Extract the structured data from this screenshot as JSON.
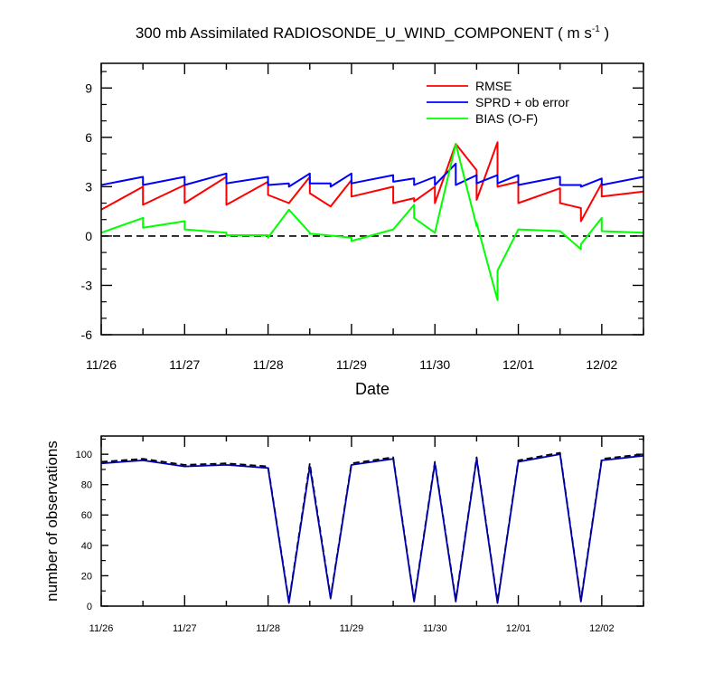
{
  "chart_data": [
    {
      "type": "line",
      "title": "300 mb Assimilated RADIOSONDE_U_WIND_COMPONENT ( m s",
      "title_superscript": "-1",
      "title_tail": " )",
      "xlabel": "Date",
      "ylabel": "",
      "x_tick_labels": [
        "11/26",
        "11/27",
        "11/28",
        "11/29",
        "11/30",
        "12/01",
        "12/02"
      ],
      "x_tick_days": [
        0,
        1,
        2,
        3,
        4,
        5,
        6
      ],
      "xlim": [
        0,
        6.5
      ],
      "ylim": [
        -6,
        10.5
      ],
      "y_ticks": [
        -6,
        -3,
        0,
        3,
        6,
        9
      ],
      "zero_line": "dashed",
      "legend_position": "top-right",
      "series": [
        {
          "name": "RMSE",
          "color": "#ff0000",
          "x": [
            0,
            0.5,
            0.5,
            1,
            1,
            1.5,
            1.5,
            2,
            2,
            2.25,
            2.5,
            2.5,
            2.75,
            3,
            3,
            3.5,
            3.5,
            3.75,
            3.75,
            4,
            4,
            4.25,
            4.5,
            4.5,
            4.75,
            4.75,
            5,
            5,
            5.5,
            5.5,
            5.75,
            5.75,
            6,
            6,
            6.5
          ],
          "y": [
            1.6,
            3.0,
            1.9,
            3.1,
            2.0,
            3.6,
            1.9,
            3.3,
            2.5,
            2.0,
            3.6,
            2.6,
            1.8,
            3.4,
            2.4,
            3.0,
            2.0,
            2.3,
            2.1,
            3.0,
            2.0,
            5.6,
            4.0,
            2.2,
            5.7,
            3.0,
            3.3,
            2.0,
            2.9,
            2.0,
            1.7,
            0.9,
            3.2,
            2.4,
            2.7
          ]
        },
        {
          "name": "SPRD + ob error",
          "color": "#0000ff",
          "x": [
            0,
            0.5,
            0.5,
            1,
            1,
            1.5,
            1.5,
            2,
            2,
            2.25,
            2.25,
            2.5,
            2.5,
            2.75,
            2.75,
            3,
            3,
            3.5,
            3.5,
            3.75,
            3.75,
            4,
            4,
            4.25,
            4.25,
            4.5,
            4.5,
            4.75,
            4.75,
            5,
            5,
            5.5,
            5.5,
            5.75,
            5.75,
            6,
            6,
            6.5
          ],
          "y": [
            3.1,
            3.6,
            3.1,
            3.6,
            3.1,
            3.8,
            3.2,
            3.6,
            3.1,
            3.2,
            3.0,
            3.8,
            3.2,
            3.2,
            3.0,
            3.8,
            3.2,
            3.7,
            3.3,
            3.5,
            3.1,
            3.6,
            3.1,
            4.4,
            3.1,
            3.7,
            3.2,
            3.7,
            3.2,
            3.7,
            3.1,
            3.6,
            3.1,
            3.1,
            3.0,
            3.5,
            3.1,
            3.6
          ]
        },
        {
          "name": "BIAS (O-F)",
          "color": "#00ff00",
          "x": [
            0,
            0.5,
            0.5,
            1,
            1,
            1.5,
            1.5,
            2,
            2,
            2.25,
            2.5,
            2.5,
            3,
            3,
            3.5,
            3.75,
            3.75,
            4,
            4.25,
            4.5,
            4.5,
            4.75,
            4.75,
            5,
            5.5,
            5.75,
            5.75,
            6,
            6,
            6.5
          ],
          "y": [
            0.2,
            1.1,
            0.5,
            0.9,
            0.4,
            0.2,
            0.05,
            0.05,
            -0.1,
            1.6,
            0.2,
            0.15,
            -0.1,
            -0.3,
            0.4,
            1.9,
            1.1,
            0.2,
            5.6,
            0.6,
            0.8,
            -3.9,
            -2.1,
            0.4,
            0.3,
            -0.8,
            -0.5,
            1.1,
            0.3,
            0.2
          ]
        }
      ]
    },
    {
      "type": "line",
      "title": "",
      "xlabel": "",
      "ylabel": "number of observations",
      "x_tick_labels": [
        "11/26",
        "11/27",
        "11/28",
        "11/29",
        "11/30",
        "12/01",
        "12/02"
      ],
      "x_tick_days": [
        0,
        1,
        2,
        3,
        4,
        5,
        6
      ],
      "xlim": [
        0,
        6.5
      ],
      "ylim": [
        0,
        112
      ],
      "y_ticks": [
        0,
        20,
        40,
        60,
        80,
        100
      ],
      "series": [
        {
          "name": "",
          "style": "dashed",
          "color": "#000000",
          "x": [
            0,
            0.5,
            1,
            1.5,
            2,
            2.25,
            2.5,
            2.75,
            3,
            3.5,
            3.75,
            4,
            4.25,
            4.5,
            4.75,
            5,
            5.5,
            5.75,
            6,
            6.5
          ],
          "y": [
            95,
            97,
            93,
            94,
            92,
            3,
            94,
            6,
            94,
            98,
            4,
            95,
            4,
            98,
            3,
            96,
            101,
            4,
            97,
            100
          ]
        },
        {
          "name": "",
          "style": "solid",
          "color": "#0000aa",
          "x": [
            0,
            0.5,
            1,
            1.5,
            2,
            2.25,
            2.5,
            2.75,
            3,
            3.5,
            3.75,
            4,
            4.25,
            4.5,
            4.75,
            5,
            5.5,
            5.75,
            6,
            6.5
          ],
          "y": [
            94,
            96,
            92,
            93,
            91,
            2,
            92,
            5,
            93,
            97,
            3,
            94,
            3,
            97,
            2,
            95,
            100,
            3,
            96,
            99
          ]
        }
      ]
    }
  ]
}
